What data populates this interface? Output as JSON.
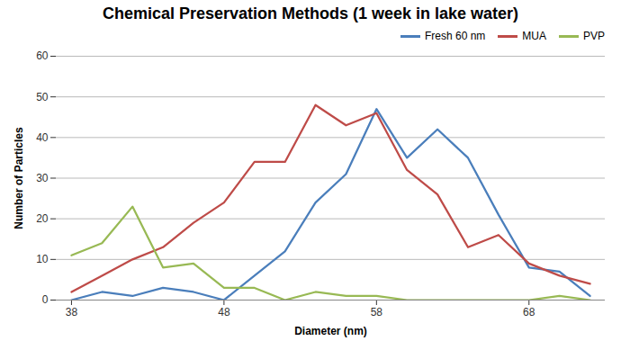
{
  "chart_data": {
    "type": "line",
    "title": "Chemical Preservation Methods (1 week in lake water)",
    "x_label": "Diameter (nm)",
    "y_label": "Number of Particles",
    "x": [
      38,
      40,
      42,
      44,
      46,
      48,
      50,
      52,
      54,
      56,
      58,
      60,
      62,
      64,
      66,
      68,
      70,
      72
    ],
    "series": [
      {
        "name": "Fresh 60 nm",
        "color": "#4a7ebb",
        "values": [
          0,
          2,
          1,
          3,
          2,
          0,
          6,
          12,
          24,
          31,
          47,
          35,
          42,
          35,
          21,
          8,
          7,
          1
        ]
      },
      {
        "name": "MUA",
        "color": "#be4b48",
        "values": [
          2,
          6,
          10,
          13,
          19,
          24,
          34,
          34,
          48,
          43,
          46,
          32,
          26,
          13,
          16,
          9,
          6,
          4
        ]
      },
      {
        "name": "PVP",
        "color": "#98b954",
        "values": [
          11,
          14,
          23,
          8,
          9,
          3,
          3,
          0,
          2,
          1,
          1,
          0,
          0,
          0,
          0,
          0,
          1,
          0
        ]
      }
    ],
    "xlim": [
      37,
      73
    ],
    "xticks": [
      38,
      48,
      58,
      68
    ],
    "ylim": [
      0,
      60
    ],
    "yticks": [
      0,
      10,
      20,
      30,
      40,
      50,
      60
    ],
    "grid": true,
    "legend": "right"
  }
}
